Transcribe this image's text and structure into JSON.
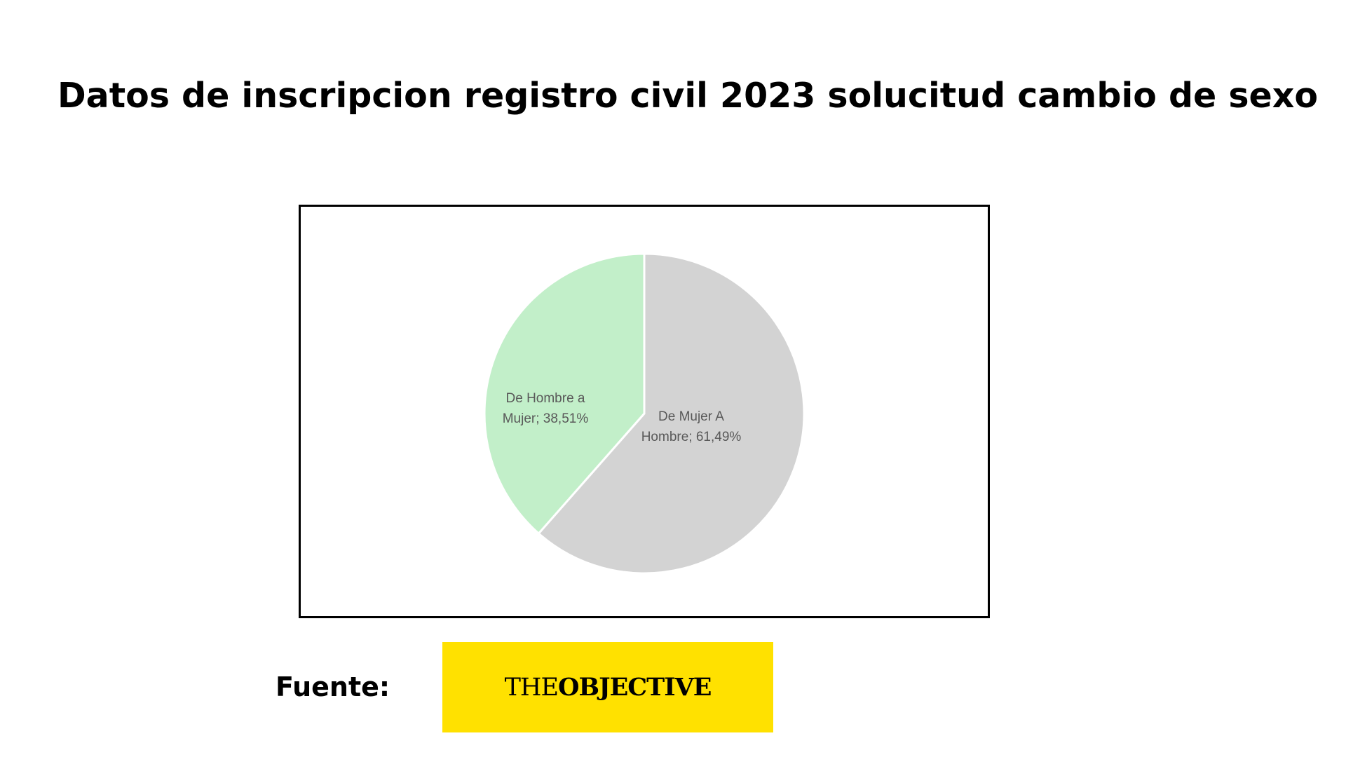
{
  "title": "Datos de inscripcion registro civil 2023 solucitud cambio de sexo",
  "source": {
    "label": "Fuente:",
    "logo_part_1": "THE",
    "logo_part_2": "OBJECTIVE",
    "logo_background": "#FFE100"
  },
  "chart_data": {
    "type": "pie",
    "title": "",
    "slices": [
      {
        "label_line_1": "De  Mujer A",
        "label_line_2": "Hombre; 61,49%",
        "name": "De Mujer A Hombre",
        "value": 61.49,
        "color": "#D3D3D3"
      },
      {
        "label_line_1": "De Hombre a",
        "label_line_2": "Mujer; 38,51%",
        "name": "De Hombre a Mujer",
        "value": 38.51,
        "color": "#C2EFC9"
      }
    ],
    "start_angle": "12 o'clock",
    "direction": "clockwise",
    "legend": "none"
  }
}
